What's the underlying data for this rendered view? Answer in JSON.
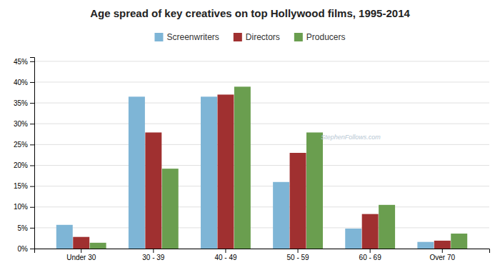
{
  "chart_data": {
    "type": "bar",
    "title": "Age spread of key creatives on top Hollywood films, 1995-2014",
    "categories": [
      "Under 30",
      "30 - 39",
      "40 - 49",
      "50 - 59",
      "60 - 69",
      "Over 70"
    ],
    "series": [
      {
        "name": "Screenwriters",
        "color": "#7eb5d6",
        "values": [
          0.057,
          0.365,
          0.365,
          0.16,
          0.048,
          0.016
        ]
      },
      {
        "name": "Directors",
        "color": "#a03030",
        "values": [
          0.028,
          0.279,
          0.37,
          0.23,
          0.083,
          0.019
        ]
      },
      {
        "name": "Producers",
        "color": "#6a9e4f",
        "values": [
          0.014,
          0.192,
          0.389,
          0.279,
          0.105,
          0.036
        ]
      }
    ],
    "ylim": [
      0,
      0.46
    ],
    "yticks": [
      {
        "value": 0.0,
        "label": "0%"
      },
      {
        "value": 0.05,
        "label": "5%"
      },
      {
        "value": 0.1,
        "label": "10%"
      },
      {
        "value": 0.15,
        "label": "15%"
      },
      {
        "value": 0.2,
        "label": "20%"
      },
      {
        "value": 0.25,
        "label": "25%"
      },
      {
        "value": 0.3,
        "label": "30%"
      },
      {
        "value": 0.35,
        "label": "35%"
      },
      {
        "value": 0.4,
        "label": "40%"
      },
      {
        "value": 0.45,
        "label": "45%"
      }
    ],
    "grid": true,
    "legend": "top",
    "annotations": [
      "StephenFollows.com"
    ]
  }
}
